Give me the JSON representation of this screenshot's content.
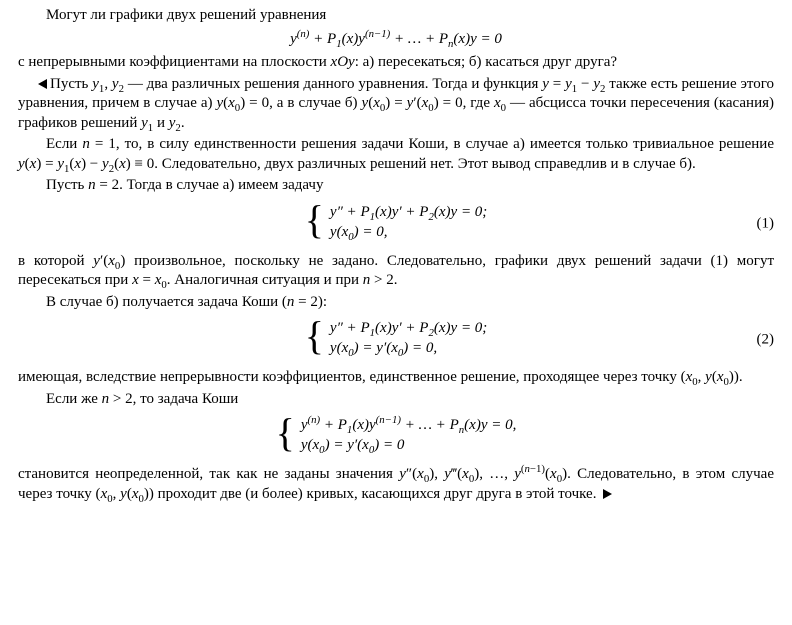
{
  "intro_q": "Могут ли графики двух решений уравнения",
  "eqA": "y<span class=\"sup\">(<i>n</i>)</span> + <i>P</i><span class=\"sub\">1</span>(<i>x</i>)<i>y</i><span class=\"sup\">(<i>n</i>−1)</span> + … + <i>P</i><span class=\"sub\"><i>n</i></span>(<i>x</i>)<i>y</i> = 0",
  "intro_q2": "с непрерывными коэффициентами на плоскости <i>xOy</i>: а) пересекаться; б) касаться друг друга?",
  "p1": "Пусть <i>y</i><span class=\"sub\">1</span>, <i>y</i><span class=\"sub\">2</span> — два различных решения данного уравнения. Тогда и функция <i>y</i> = <i>y</i><span class=\"sub\">1</span> − <i>y</i><span class=\"sub\">2</span> также есть решение этого уравнения, причем в случае а) <i>y</i>(<i>x</i><span class=\"sub\">0</span>) = 0, а в случае б) <i>y</i>(<i>x</i><span class=\"sub\">0</span>) = <i>y</i>′(<i>x</i><span class=\"sub\">0</span>) = 0, где <i>x</i><span class=\"sub\">0</span> — абсцисса точки пересечения (касания) графиков решений <i>y</i><span class=\"sub\">1</span> и <i>y</i><span class=\"sub\">2</span>.",
  "p2": "Если <i>n</i> = 1, то, в силу единственности решения задачи Коши, в случае а) имеется только тривиальное решение <i>y</i>(<i>x</i>) = <i>y</i><span class=\"sub\">1</span>(<i>x</i>) − <i>y</i><span class=\"sub\">2</span>(<i>x</i>) ≡ 0. Следовательно, двух различных решений нет. Этот вывод справедлив и в случае б).",
  "p3": "Пусть <i>n</i> = 2. Тогда в случае а) имеем задачу",
  "sys1_l1": "<i>y</i>″ + <i>P</i><span class=\"sub\">1</span>(<i>x</i>)<i>y</i>′ + <i>P</i><span class=\"sub\">2</span>(<i>x</i>)<i>y</i> = 0;",
  "sys1_l2": "<i>y</i>(<i>x</i><span class=\"sub\">0</span>) = 0,",
  "eqnum1": "(1)",
  "p4": "в которой <i>y</i>′(<i>x</i><span class=\"sub\">0</span>) произвольное, поскольку не задано. Следовательно, графики двух решений задачи (1) могут пересекаться при <i>x</i> = <i>x</i><span class=\"sub\">0</span>. Аналогичная ситуация и при <i>n</i> > 2.",
  "p5": "В случае б) получается задача Коши (<i>n</i> = 2):",
  "sys2_l1": "<i>y</i>″ + <i>P</i><span class=\"sub\">1</span>(<i>x</i>)<i>y</i>′ + <i>P</i><span class=\"sub\">2</span>(<i>x</i>)<i>y</i> = 0;",
  "sys2_l2": "<i>y</i>(<i>x</i><span class=\"sub\">0</span>) = <i>y</i>′(<i>x</i><span class=\"sub\">0</span>) = 0,",
  "eqnum2": "(2)",
  "p6": "имеющая, вследствие непрерывности коэффициентов, единственное решение, проходящее через точку (<i>x</i><span class=\"sub\">0</span>, <i>y</i>(<i>x</i><span class=\"sub\">0</span>)).",
  "p7": "Если же <i>n</i> > 2, то задача Коши",
  "sys3_l1": "<i>y</i><span class=\"sup\">(<i>n</i>)</span> + <i>P</i><span class=\"sub\">1</span>(<i>x</i>)<i>y</i><span class=\"sup\">(<i>n</i>−1)</span> + … + <i>P</i><span class=\"sub\"><i>n</i></span>(<i>x</i>)<i>y</i> = 0,",
  "sys3_l2": "<i>y</i>(<i>x</i><span class=\"sub\">0</span>) = <i>y</i>′(<i>x</i><span class=\"sub\">0</span>) = 0",
  "p8": "становится неопределенной, так как не заданы значения <i>y</i>″(<i>x</i><span class=\"sub\">0</span>), <i>y</i>‴(<i>x</i><span class=\"sub\">0</span>), …, <i>y</i><span class=\"sup\">(<i>n</i>−1)</span>(<i>x</i><span class=\"sub\">0</span>). Следовательно, в этом случае через точку (<i>x</i><span class=\"sub\">0</span>, <i>y</i>(<i>x</i><span class=\"sub\">0</span>)) проходит две (и более) кривых, касающихся друг друга в этой точке."
}
